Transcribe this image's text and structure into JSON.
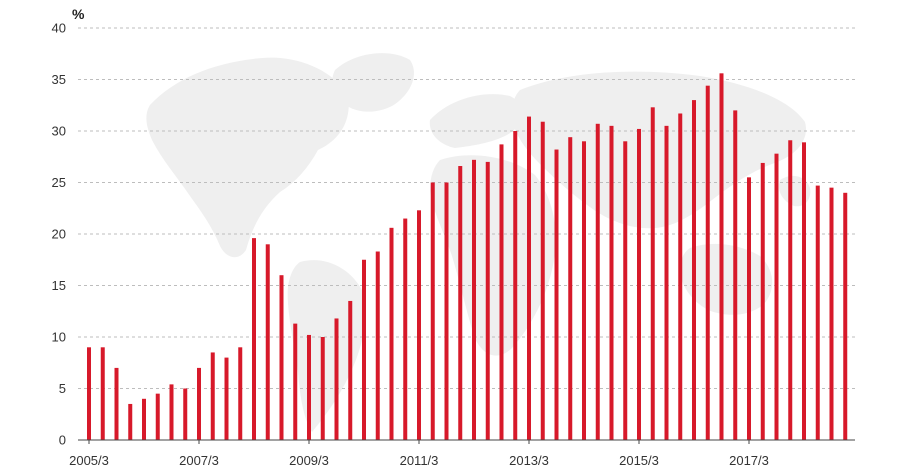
{
  "chart_data": {
    "type": "bar",
    "unit": "%",
    "ylim": [
      0,
      40
    ],
    "yticks": [
      0,
      5,
      10,
      15,
      20,
      25,
      30,
      35,
      40
    ],
    "grid": "horizontal dashed",
    "x_tick_labels": [
      "2005/3",
      "2007/3",
      "2009/3",
      "2011/3",
      "2013/3",
      "2015/3",
      "2017/3"
    ],
    "x_tick_positions": [
      0,
      8,
      16,
      24,
      32,
      40,
      48
    ],
    "colors": {
      "bar": "#d7192a",
      "background_map": "#eeeeee"
    },
    "values": [
      9.0,
      9.0,
      7.0,
      3.5,
      4.0,
      4.5,
      5.4,
      5.0,
      7.0,
      8.5,
      8.0,
      9.0,
      19.6,
      19.0,
      16.0,
      11.3,
      10.2,
      10.0,
      11.8,
      13.5,
      17.5,
      18.3,
      20.6,
      21.5,
      22.3,
      25.0,
      25.0,
      26.6,
      27.2,
      27.0,
      28.7,
      30.0,
      31.4,
      30.9,
      28.2,
      29.4,
      29.0,
      30.7,
      30.5,
      29.0,
      30.2,
      32.3,
      30.5,
      31.7,
      33.0,
      34.4,
      35.6,
      32.0,
      25.5,
      26.9,
      27.8,
      29.1,
      28.9,
      24.7,
      24.5,
      24.0
    ]
  }
}
